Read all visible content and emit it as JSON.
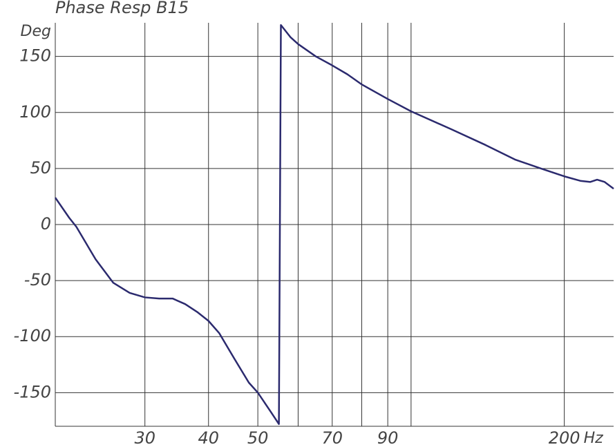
{
  "chart_data": {
    "type": "line",
    "title": "Phase Resp B15",
    "y_unit": "Deg",
    "x_unit": "Hz",
    "x_scale": "log",
    "grid": true,
    "xlim": [
      20,
      250
    ],
    "xticks": [
      30,
      40,
      50,
      70,
      90,
      200
    ],
    "xgrid_unlabeled": [
      60,
      80,
      100
    ],
    "ylim": [
      -180,
      180
    ],
    "yticks": [
      -150,
      -100,
      -50,
      0,
      50,
      100,
      150
    ],
    "x": [
      20,
      21.3,
      22,
      24,
      26,
      28,
      30,
      32,
      34,
      36,
      38,
      40,
      42,
      45,
      48,
      50,
      53,
      55,
      55.5,
      58,
      60,
      65,
      70,
      75,
      80,
      90,
      100,
      120,
      140,
      160,
      180,
      200,
      215,
      225,
      232,
      240,
      250
    ],
    "series": [
      {
        "color": "#2b2a6e",
        "values": [
          24,
          6,
          -2,
          -31,
          -52,
          -61,
          -65,
          -66,
          -66,
          -71,
          -78,
          -86,
          -97,
          -120,
          -141,
          -150,
          -167,
          -178,
          178,
          167,
          161,
          150,
          142,
          134,
          125,
          112,
          101,
          85,
          71,
          58,
          50,
          43,
          39,
          38,
          40,
          38,
          32
        ]
      }
    ]
  }
}
